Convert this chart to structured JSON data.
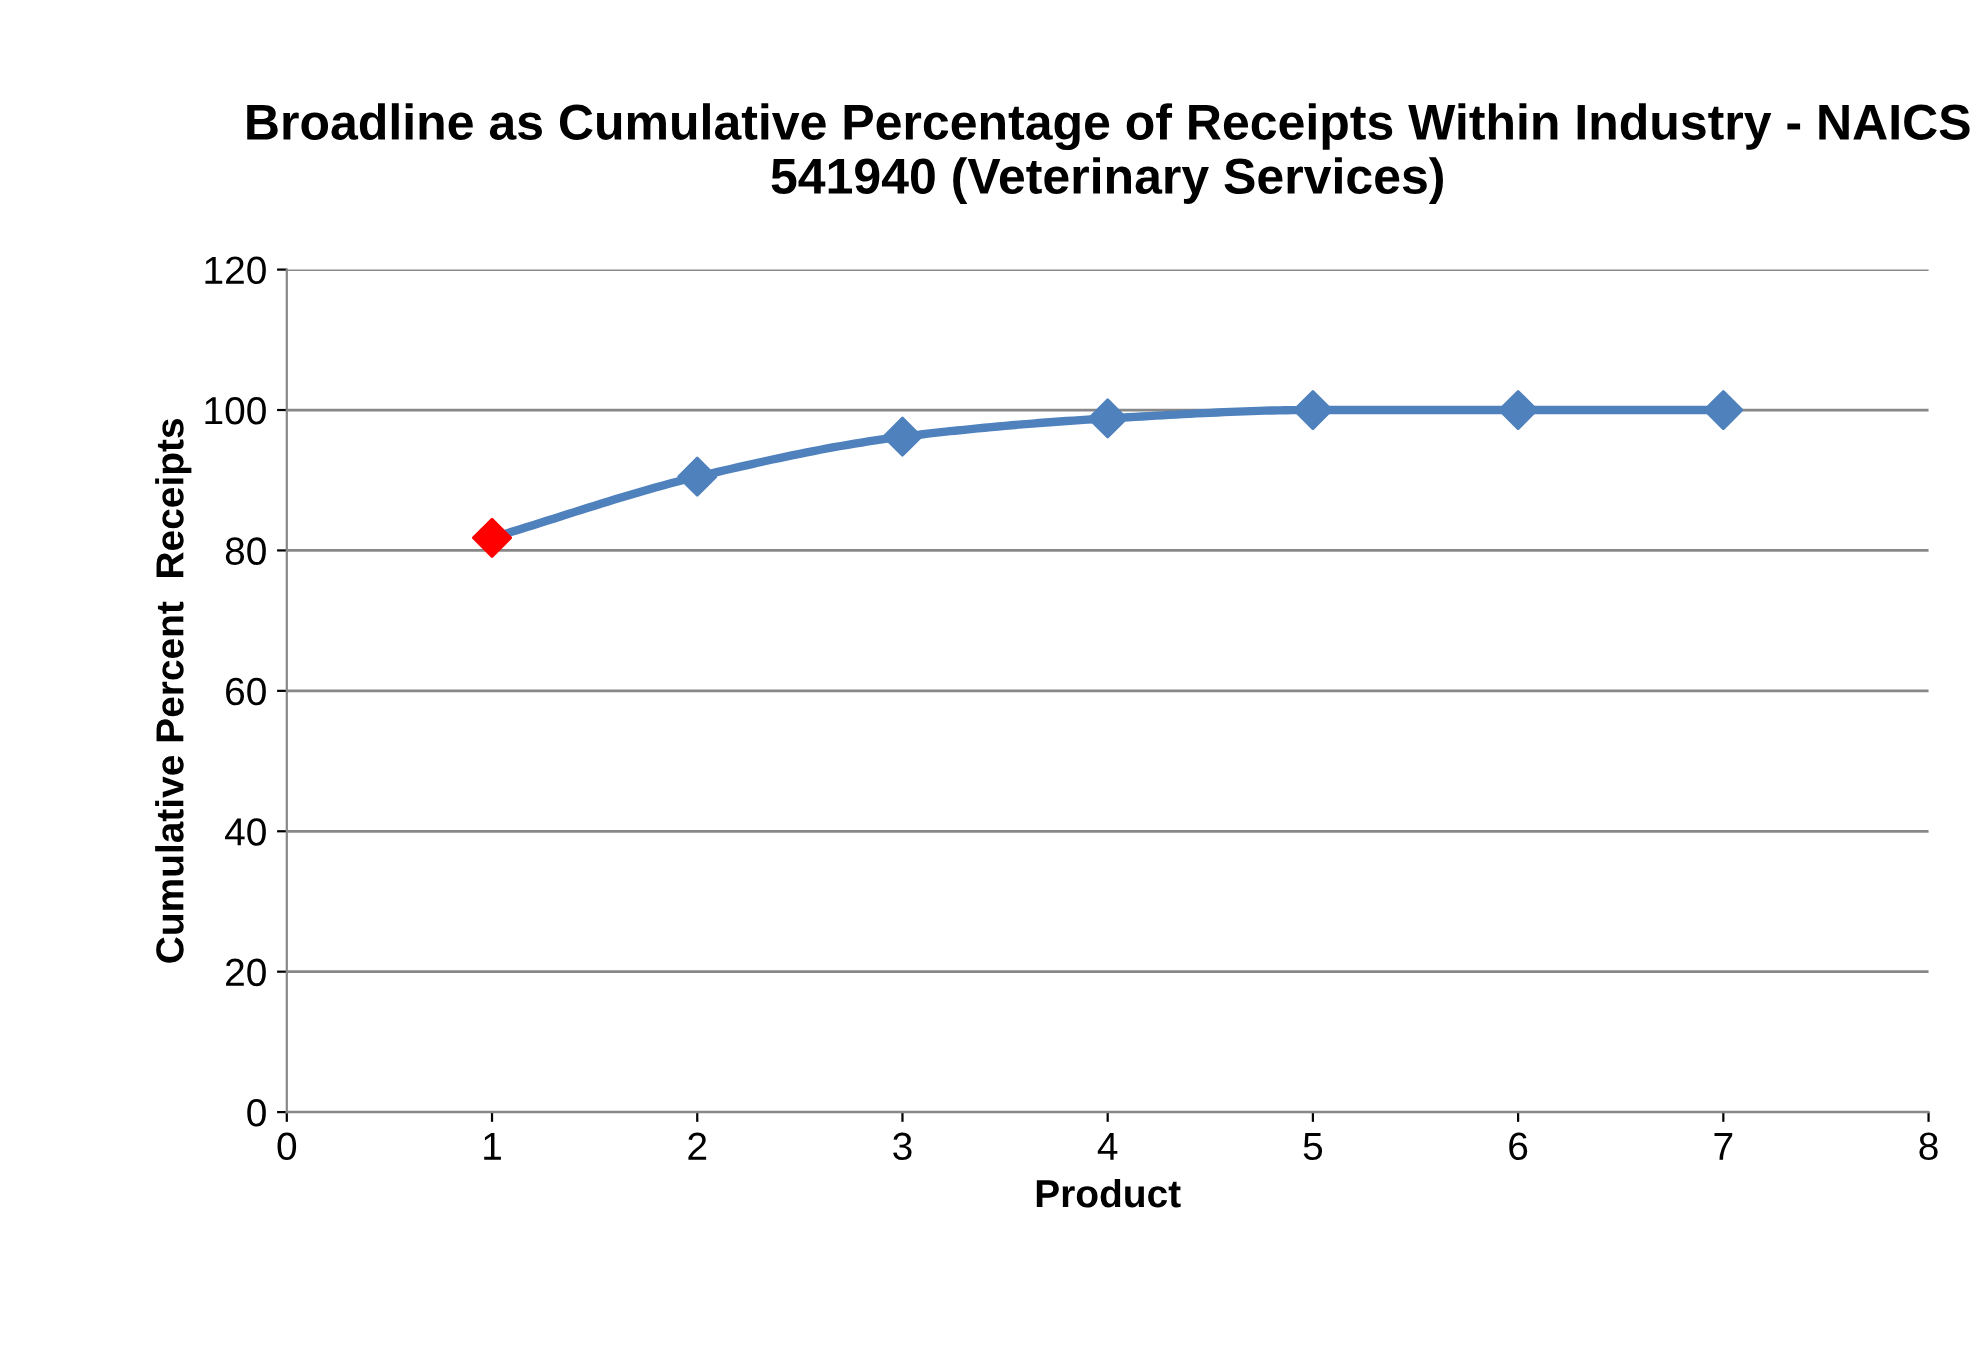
{
  "chart_data": {
    "type": "line",
    "title": "Broadline as Cumulative Percentage of Receipts Within Industry - NAICS 541940 (Veterinary Services)",
    "xlabel": "Product",
    "ylabel": "Cumulative Percent  Receipts",
    "x": [
      1,
      2,
      3,
      4,
      5,
      6,
      7
    ],
    "series": [
      {
        "color": "#4f81bd",
        "colors": [
          "#ff0000",
          "#4f81bd",
          "#4f81bd",
          "#4f81bd",
          "#4f81bd",
          "#4f81bd",
          "#4f81bd"
        ],
        "values": [
          81.8,
          90.5,
          96.2,
          98.8,
          100,
          100,
          100
        ]
      }
    ],
    "xlim": [
      0,
      8
    ],
    "xticks": [
      0,
      1,
      2,
      3,
      4,
      5,
      6,
      7,
      8
    ],
    "ylim": [
      0,
      120
    ],
    "yticks": [
      0,
      20,
      40,
      60,
      80,
      100,
      120
    ],
    "grid": "y",
    "legend": false,
    "marker": "diamond",
    "line_style": "solid"
  }
}
